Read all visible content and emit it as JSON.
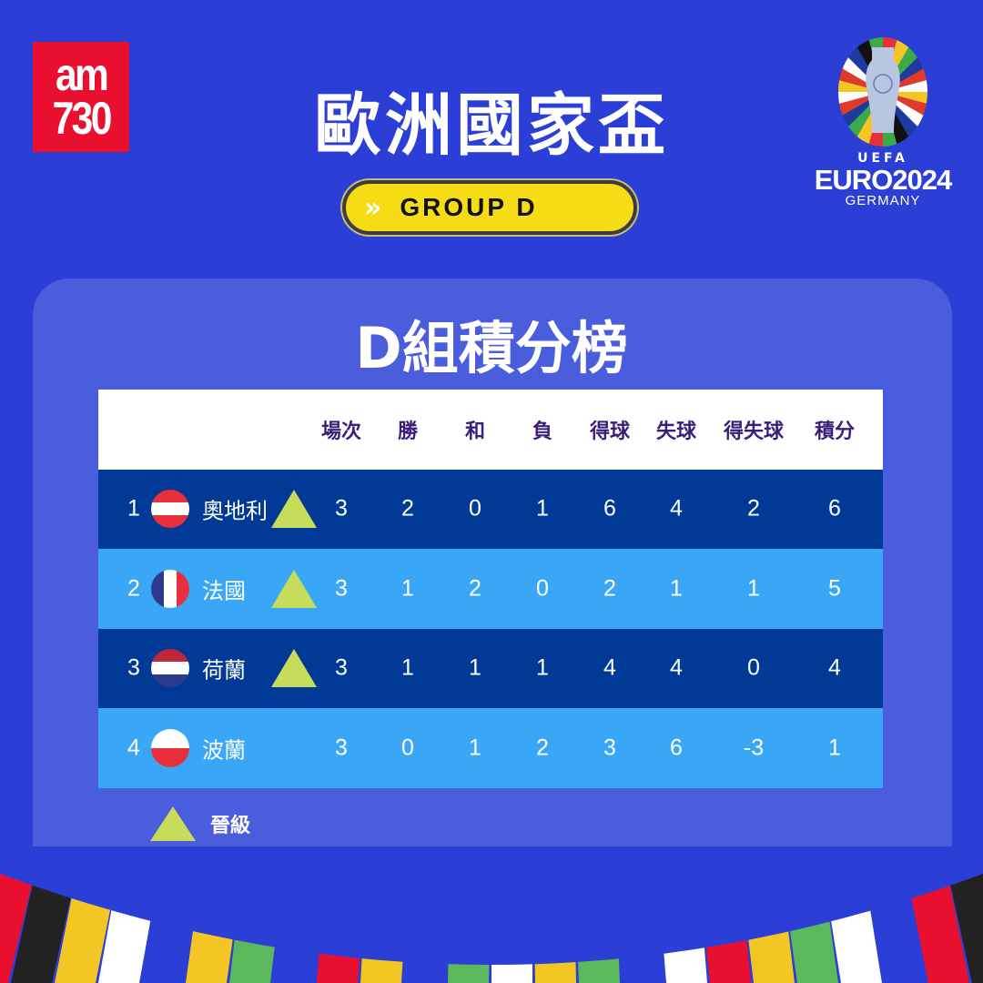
{
  "brand": {
    "logo_text": [
      "am",
      "730"
    ]
  },
  "header": {
    "title": "歐洲國家盃",
    "group_label": "GROUP D",
    "chevron_icon": "double-chevron-right-icon"
  },
  "euro_logo": {
    "uefa": "UEFA",
    "euro": "EURO2024",
    "country": "GERMANY"
  },
  "panel": {
    "title": "D組積分榜"
  },
  "table": {
    "columns": [
      "場次",
      "勝",
      "和",
      "負",
      "得球",
      "失球",
      "得失球",
      "積分"
    ],
    "rows": [
      {
        "rank": "1",
        "team": "奧地利",
        "flag": "austria",
        "qualified": true,
        "values": [
          "3",
          "2",
          "0",
          "1",
          "6",
          "4",
          "2",
          "6"
        ]
      },
      {
        "rank": "2",
        "team": "法國",
        "flag": "france",
        "qualified": true,
        "values": [
          "3",
          "1",
          "2",
          "0",
          "2",
          "1",
          "1",
          "5"
        ]
      },
      {
        "rank": "3",
        "team": "荷蘭",
        "flag": "netherlands",
        "qualified": true,
        "values": [
          "3",
          "1",
          "1",
          "1",
          "4",
          "4",
          "0",
          "4"
        ]
      },
      {
        "rank": "4",
        "team": "波蘭",
        "flag": "poland",
        "qualified": false,
        "values": [
          "3",
          "0",
          "1",
          "2",
          "3",
          "6",
          "-3",
          "1"
        ]
      }
    ]
  },
  "legend": {
    "label": "晉級",
    "color": "#c7dc5a"
  },
  "colors": {
    "background": "#2b3ed6",
    "panel": "#4a5ddd",
    "row_dark": "#003a96",
    "row_light": "#3aa6f6",
    "pill": "#f5dc14",
    "header_text": "#3a1f7a"
  }
}
